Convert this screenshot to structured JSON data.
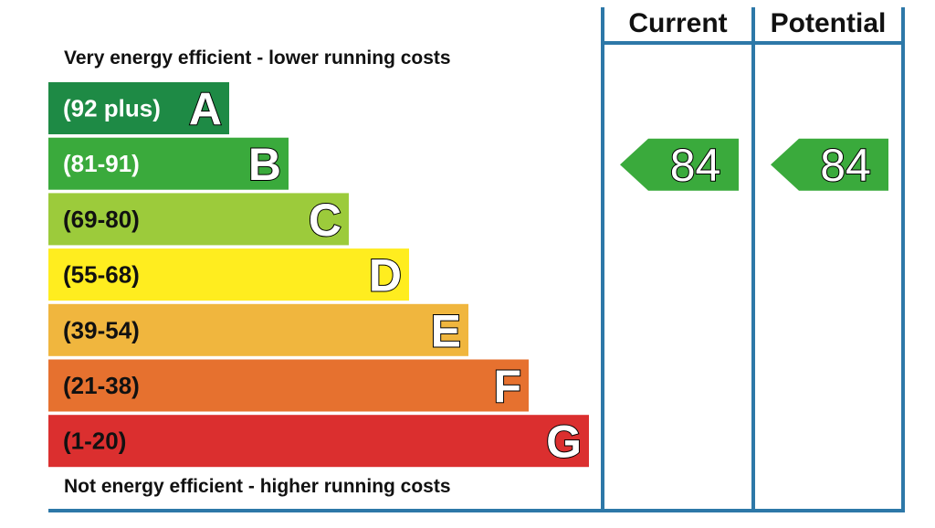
{
  "chart_data": {
    "type": "bar",
    "title": "",
    "top_caption": "Very energy efficient - lower running costs",
    "bottom_caption": "Not energy efficient - higher running costs",
    "bands": [
      {
        "letter": "A",
        "range": "(92 plus)",
        "min": 92,
        "max": 100,
        "color": "#1e8a45"
      },
      {
        "letter": "B",
        "range": "(81-91)",
        "min": 81,
        "max": 91,
        "color": "#3aaa3c"
      },
      {
        "letter": "C",
        "range": "(69-80)",
        "min": 69,
        "max": 80,
        "color": "#9ccb3b"
      },
      {
        "letter": "D",
        "range": "(55-68)",
        "min": 55,
        "max": 68,
        "color": "#ffed1f"
      },
      {
        "letter": "E",
        "range": "(39-54)",
        "min": 39,
        "max": 54,
        "color": "#f0b63e"
      },
      {
        "letter": "F",
        "range": "(21-38)",
        "min": 21,
        "max": 38,
        "color": "#e6712f"
      },
      {
        "letter": "G",
        "range": "(1-20)",
        "min": 1,
        "max": 20,
        "color": "#db2f2f"
      }
    ],
    "columns": [
      {
        "header": "Current",
        "value": 84,
        "band": "B"
      },
      {
        "header": "Potential",
        "value": 84,
        "band": "B"
      }
    ],
    "frame_color": "#2d78a8",
    "range_text_colors": {
      "dark_bands": "#ffffff",
      "light_bands": "#111111"
    }
  }
}
